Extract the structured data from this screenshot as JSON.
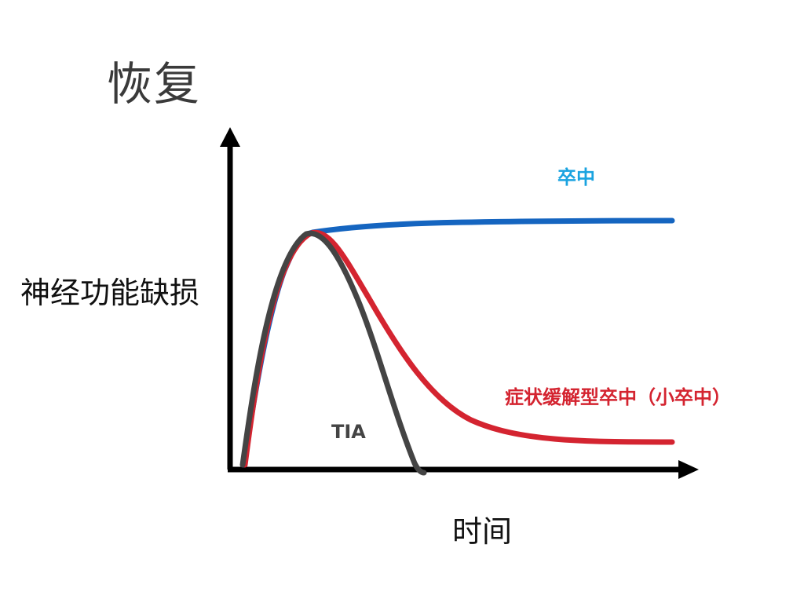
{
  "title": "恢复",
  "axes": {
    "y_label": "神经功能缺损",
    "x_label": "时间"
  },
  "curves": {
    "stroke": {
      "label": "卒中",
      "label_color": "#1aa3e0",
      "line_color": "#1565c0"
    },
    "minor_stroke": {
      "label": "症状缓解型卒中（小卒中）",
      "label_color": "#d42430",
      "line_color": "#d42430"
    },
    "tia": {
      "label": "TIA",
      "label_color": "#444444",
      "line_color": "#444444"
    }
  },
  "colors": {
    "axis": "#000000"
  }
}
